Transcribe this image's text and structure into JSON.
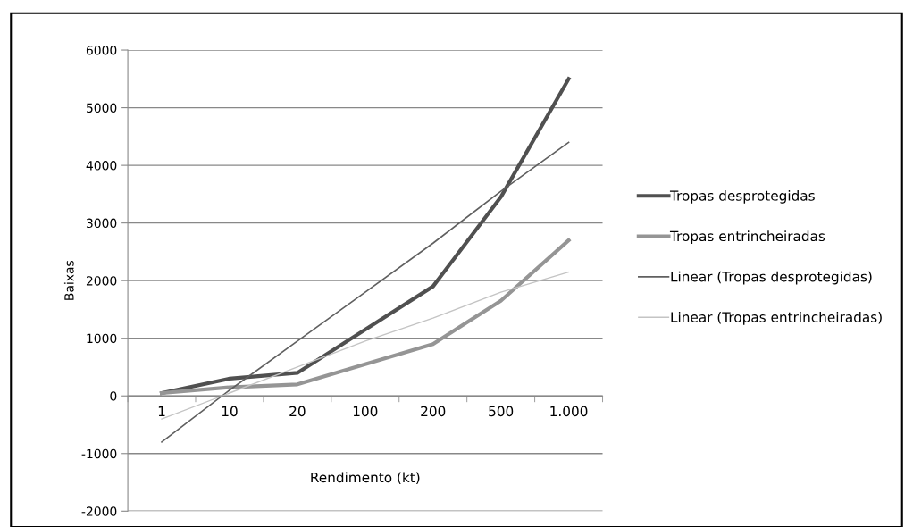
{
  "chart_data": {
    "type": "line",
    "xlabel": "Rendimento (kt)",
    "ylabel": "Baixas",
    "categories": [
      "1",
      "10",
      "20",
      "100",
      "200",
      "500",
      "1.000"
    ],
    "series": [
      {
        "name": "Tropas desprotegidas",
        "color": "#505050",
        "values": [
          50,
          300,
          400,
          1150,
          1900,
          3450,
          5500
        ]
      },
      {
        "name": "Tropas entrincheiradas",
        "color": "#959595",
        "values": [
          50,
          150,
          200,
          550,
          900,
          1650,
          2700
        ]
      },
      {
        "name": "Linear (Tropas desprotegidas)",
        "color": "#606060",
        "values": [
          -800,
          100,
          950,
          1800,
          2650,
          3550,
          4400
        ]
      },
      {
        "name": "Linear (Tropas entrincheiradas)",
        "color": "#c4c4c4",
        "values": [
          -400,
          50,
          500,
          950,
          1350,
          1800,
          2150
        ]
      }
    ],
    "ylim": [
      -2000,
      6000
    ],
    "yticks": [
      -2000,
      -1000,
      0,
      1000,
      2000,
      3000,
      4000,
      5000,
      6000
    ],
    "grid": "y",
    "legend": "right",
    "marker": "none",
    "line_style": "solid"
  }
}
